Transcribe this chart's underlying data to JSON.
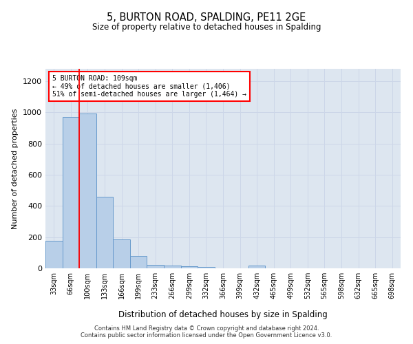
{
  "title": "5, BURTON ROAD, SPALDING, PE11 2GE",
  "subtitle": "Size of property relative to detached houses in Spalding",
  "xlabel": "Distribution of detached houses by size in Spalding",
  "ylabel": "Number of detached properties",
  "footer_line1": "Contains HM Land Registry data © Crown copyright and database right 2024.",
  "footer_line2": "Contains public sector information licensed under the Open Government Licence v3.0.",
  "bar_color": "#b8cfe8",
  "bar_edge_color": "#6699cc",
  "bar_width": 1.0,
  "categories": [
    "33sqm",
    "66sqm",
    "100sqm",
    "133sqm",
    "166sqm",
    "199sqm",
    "233sqm",
    "266sqm",
    "299sqm",
    "332sqm",
    "366sqm",
    "399sqm",
    "432sqm",
    "465sqm",
    "499sqm",
    "532sqm",
    "565sqm",
    "598sqm",
    "632sqm",
    "665sqm",
    "698sqm"
  ],
  "values": [
    175,
    970,
    995,
    460,
    185,
    80,
    22,
    18,
    12,
    10,
    0,
    0,
    18,
    0,
    0,
    0,
    0,
    0,
    0,
    0,
    0
  ],
  "ylim": [
    0,
    1280
  ],
  "yticks": [
    0,
    200,
    400,
    600,
    800,
    1000,
    1200
  ],
  "property_label": "5 BURTON ROAD: 109sqm",
  "annotation_line1": "← 49% of detached houses are smaller (1,406)",
  "annotation_line2": "51% of semi-detached houses are larger (1,464) →",
  "redline_bar_index": 2,
  "grid_color": "#ccd6e8",
  "background_color": "#dde6f0"
}
